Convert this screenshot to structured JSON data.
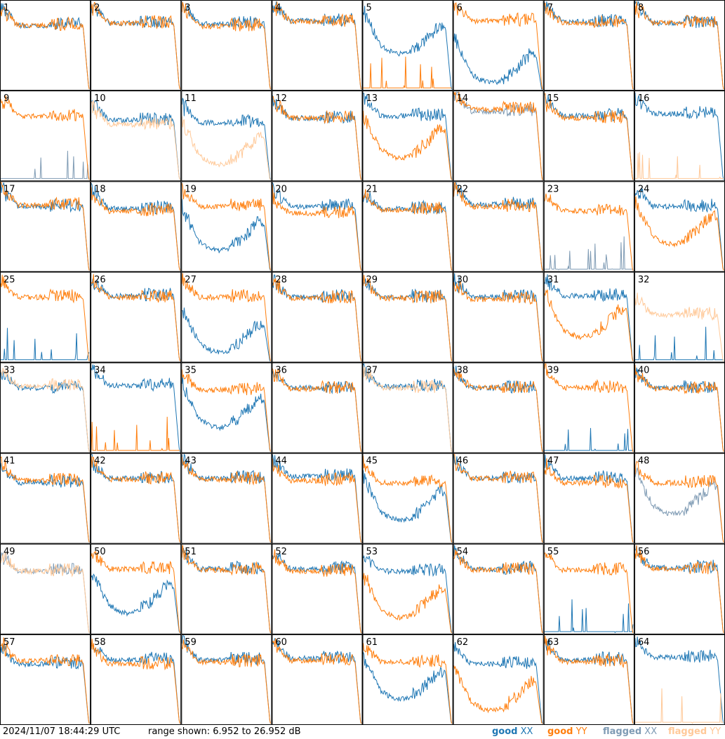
{
  "timestamp": "2024/11/07 18:44:29 UTC",
  "range_text": "range shown: 6.952 to 26.952 dB",
  "legend": {
    "good_word": "good",
    "flagged_word": "flagged",
    "xx": "XX",
    "yy": "YY"
  },
  "colors": {
    "good_xx": "#1f77b4",
    "good_yy": "#ff7f0e",
    "flagged_xx": "#7f9bb4",
    "flagged_yy": "#ffc999",
    "border": "#000000"
  },
  "chart_data": {
    "type": "line",
    "grid": {
      "rows": 8,
      "cols": 8
    },
    "ylim": [
      6.952,
      26.952
    ],
    "yunit": "dB",
    "panels": [
      {
        "id": "1",
        "xx": {
          "status": "good",
          "profile": "band",
          "level": 21.5
        },
        "yy": {
          "status": "good",
          "profile": "band",
          "level": 21.5
        }
      },
      {
        "id": "2",
        "xx": {
          "status": "good",
          "profile": "band",
          "level": 22.0
        },
        "yy": {
          "status": "good",
          "profile": "band",
          "level": 22.0
        }
      },
      {
        "id": "3",
        "xx": {
          "status": "good",
          "profile": "band",
          "level": 21.8
        },
        "yy": {
          "status": "good",
          "profile": "band",
          "level": 21.3
        }
      },
      {
        "id": "4",
        "xx": {
          "status": "good",
          "profile": "band",
          "level": 22.5
        },
        "yy": {
          "status": "good",
          "profile": "band",
          "level": 22.3
        }
      },
      {
        "id": "5",
        "xx": {
          "status": "good",
          "profile": "dip",
          "level": 21.0
        },
        "yy": {
          "status": "good",
          "profile": "spike",
          "level": 9.0
        }
      },
      {
        "id": "6",
        "xx": {
          "status": "good",
          "profile": "dip",
          "level": 14.5
        },
        "yy": {
          "status": "good",
          "profile": "band",
          "level": 22.5
        }
      },
      {
        "id": "7",
        "xx": {
          "status": "good",
          "profile": "band",
          "level": 22.3
        },
        "yy": {
          "status": "good",
          "profile": "band",
          "level": 22.0
        }
      },
      {
        "id": "8",
        "xx": {
          "status": "good",
          "profile": "band",
          "level": 22.0
        },
        "yy": {
          "status": "good",
          "profile": "band",
          "level": 22.0
        }
      },
      {
        "id": "9",
        "xx": {
          "status": "flagged",
          "profile": "spike",
          "level": 9.0
        },
        "yy": {
          "status": "good",
          "profile": "band",
          "level": 21.5
        }
      },
      {
        "id": "10",
        "xx": {
          "status": "good",
          "profile": "band",
          "level": 20.5
        },
        "yy": {
          "status": "flagged",
          "profile": "band",
          "level": 19.5
        }
      },
      {
        "id": "11",
        "xx": {
          "status": "good",
          "profile": "band",
          "level": 20.0
        },
        "yy": {
          "status": "flagged",
          "profile": "dip",
          "level": 16.5
        }
      },
      {
        "id": "12",
        "xx": {
          "status": "good",
          "profile": "band",
          "level": 21.0
        },
        "yy": {
          "status": "good",
          "profile": "band",
          "level": 21.0
        }
      },
      {
        "id": "13",
        "xx": {
          "status": "good",
          "profile": "band",
          "level": 21.5
        },
        "yy": {
          "status": "good",
          "profile": "dip",
          "level": 18.0
        }
      },
      {
        "id": "14",
        "xx": {
          "status": "flagged",
          "profile": "band",
          "level": 22.5
        },
        "yy": {
          "status": "good",
          "profile": "band",
          "level": 23.0
        }
      },
      {
        "id": "15",
        "xx": {
          "status": "good",
          "profile": "band",
          "level": 21.5
        },
        "yy": {
          "status": "good",
          "profile": "band",
          "level": 21.0
        }
      },
      {
        "id": "16",
        "xx": {
          "status": "good",
          "profile": "band",
          "level": 22.0
        },
        "yy": {
          "status": "flagged",
          "profile": "spike",
          "level": 9.0
        }
      },
      {
        "id": "17",
        "xx": {
          "status": "good",
          "profile": "band",
          "level": 21.5
        },
        "yy": {
          "status": "good",
          "profile": "band",
          "level": 21.8
        }
      },
      {
        "id": "18",
        "xx": {
          "status": "good",
          "profile": "band",
          "level": 21.0
        },
        "yy": {
          "status": "good",
          "profile": "band",
          "level": 20.5
        }
      },
      {
        "id": "19",
        "xx": {
          "status": "good",
          "profile": "dip",
          "level": 17.5
        },
        "yy": {
          "status": "good",
          "profile": "band",
          "level": 21.5
        }
      },
      {
        "id": "20",
        "xx": {
          "status": "good",
          "profile": "band",
          "level": 21.5
        },
        "yy": {
          "status": "good",
          "profile": "band",
          "level": 20.0
        }
      },
      {
        "id": "21",
        "xx": {
          "status": "good",
          "profile": "band",
          "level": 21.0
        },
        "yy": {
          "status": "good",
          "profile": "band",
          "level": 20.8
        }
      },
      {
        "id": "22",
        "xx": {
          "status": "good",
          "profile": "band",
          "level": 22.0
        },
        "yy": {
          "status": "good",
          "profile": "band",
          "level": 21.5
        }
      },
      {
        "id": "23",
        "xx": {
          "status": "flagged",
          "profile": "spike",
          "level": 10.0
        },
        "yy": {
          "status": "good",
          "profile": "band",
          "level": 20.5
        }
      },
      {
        "id": "24",
        "xx": {
          "status": "good",
          "profile": "band",
          "level": 21.5
        },
        "yy": {
          "status": "good",
          "profile": "dip",
          "level": 19.0
        }
      },
      {
        "id": "25",
        "xx": {
          "status": "good",
          "profile": "spike",
          "level": 9.0
        },
        "yy": {
          "status": "good",
          "profile": "band",
          "level": 21.5
        }
      },
      {
        "id": "26",
        "xx": {
          "status": "good",
          "profile": "band",
          "level": 21.8
        },
        "yy": {
          "status": "good",
          "profile": "band",
          "level": 21.5
        }
      },
      {
        "id": "27",
        "xx": {
          "status": "good",
          "profile": "dip",
          "level": 15.0
        },
        "yy": {
          "status": "good",
          "profile": "band",
          "level": 21.5
        }
      },
      {
        "id": "28",
        "xx": {
          "status": "good",
          "profile": "band",
          "level": 21.5
        },
        "yy": {
          "status": "good",
          "profile": "band",
          "level": 21.3
        }
      },
      {
        "id": "29",
        "xx": {
          "status": "good",
          "profile": "band",
          "level": 21.5
        },
        "yy": {
          "status": "good",
          "profile": "band",
          "level": 21.3
        }
      },
      {
        "id": "30",
        "xx": {
          "status": "good",
          "profile": "band",
          "level": 21.5
        },
        "yy": {
          "status": "good",
          "profile": "band",
          "level": 21.0
        }
      },
      {
        "id": "31",
        "xx": {
          "status": "good",
          "profile": "band",
          "level": 21.8
        },
        "yy": {
          "status": "good",
          "profile": "dip",
          "level": 18.5
        }
      },
      {
        "id": "32",
        "xx": {
          "status": "good",
          "profile": "spike",
          "level": 9.0
        },
        "yy": {
          "status": "flagged",
          "profile": "band",
          "level": 17.5
        }
      },
      {
        "id": "33",
        "xx": {
          "status": "good",
          "profile": "band",
          "level": 21.5
        },
        "yy": {
          "status": "flagged",
          "profile": "band",
          "level": 21.8
        }
      },
      {
        "id": "34",
        "xx": {
          "status": "good",
          "profile": "band",
          "level": 22.0
        },
        "yy": {
          "status": "good",
          "profile": "spike",
          "level": 9.0
        }
      },
      {
        "id": "35",
        "xx": {
          "status": "good",
          "profile": "dip",
          "level": 18.5
        },
        "yy": {
          "status": "good",
          "profile": "band",
          "level": 21.0
        }
      },
      {
        "id": "36",
        "xx": {
          "status": "good",
          "profile": "band",
          "level": 21.5
        },
        "yy": {
          "status": "good",
          "profile": "band",
          "level": 21.3
        }
      },
      {
        "id": "37",
        "xx": {
          "status": "good",
          "profile": "band",
          "level": 21.8
        },
        "yy": {
          "status": "flagged",
          "profile": "band",
          "level": 21.5
        }
      },
      {
        "id": "38",
        "xx": {
          "status": "good",
          "profile": "band",
          "level": 21.5
        },
        "yy": {
          "status": "good",
          "profile": "band",
          "level": 21.5
        }
      },
      {
        "id": "39",
        "xx": {
          "status": "good",
          "profile": "spike",
          "level": 9.0
        },
        "yy": {
          "status": "good",
          "profile": "band",
          "level": 21.5
        }
      },
      {
        "id": "40",
        "xx": {
          "status": "good",
          "profile": "band",
          "level": 21.5
        },
        "yy": {
          "status": "good",
          "profile": "band",
          "level": 21.3
        }
      },
      {
        "id": "41",
        "xx": {
          "status": "good",
          "profile": "band",
          "level": 20.5
        },
        "yy": {
          "status": "good",
          "profile": "band",
          "level": 21.0
        }
      },
      {
        "id": "42",
        "xx": {
          "status": "good",
          "profile": "band",
          "level": 21.5
        },
        "yy": {
          "status": "good",
          "profile": "band",
          "level": 21.3
        }
      },
      {
        "id": "43",
        "xx": {
          "status": "good",
          "profile": "band",
          "level": 21.5
        },
        "yy": {
          "status": "good",
          "profile": "band",
          "level": 21.3
        }
      },
      {
        "id": "44",
        "xx": {
          "status": "good",
          "profile": "band",
          "level": 22.0
        },
        "yy": {
          "status": "good",
          "profile": "band",
          "level": 21.0
        }
      },
      {
        "id": "45",
        "xx": {
          "status": "good",
          "profile": "dip",
          "level": 18.0
        },
        "yy": {
          "status": "good",
          "profile": "band",
          "level": 20.5
        }
      },
      {
        "id": "46",
        "xx": {
          "status": "good",
          "profile": "band",
          "level": 21.5
        },
        "yy": {
          "status": "good",
          "profile": "band",
          "level": 21.5
        }
      },
      {
        "id": "47",
        "xx": {
          "status": "good",
          "profile": "band",
          "level": 21.5
        },
        "yy": {
          "status": "good",
          "profile": "band",
          "level": 20.5
        }
      },
      {
        "id": "48",
        "xx": {
          "status": "flagged",
          "profile": "dip",
          "level": 19.5
        },
        "yy": {
          "status": "good",
          "profile": "band",
          "level": 20.5
        }
      },
      {
        "id": "49",
        "xx": {
          "status": "flagged",
          "profile": "band",
          "level": 21.0
        },
        "yy": {
          "status": "flagged",
          "profile": "band",
          "level": 21.0
        }
      },
      {
        "id": "50",
        "xx": {
          "status": "good",
          "profile": "dip",
          "level": 17.5
        },
        "yy": {
          "status": "good",
          "profile": "band",
          "level": 21.5
        }
      },
      {
        "id": "51",
        "xx": {
          "status": "good",
          "profile": "band",
          "level": 21.5
        },
        "yy": {
          "status": "good",
          "profile": "band",
          "level": 21.3
        }
      },
      {
        "id": "52",
        "xx": {
          "status": "good",
          "profile": "band",
          "level": 21.5
        },
        "yy": {
          "status": "good",
          "profile": "band",
          "level": 21.0
        }
      },
      {
        "id": "53",
        "xx": {
          "status": "good",
          "profile": "band",
          "level": 21.0
        },
        "yy": {
          "status": "good",
          "profile": "dip",
          "level": 16.5
        }
      },
      {
        "id": "54",
        "xx": {
          "status": "good",
          "profile": "band",
          "level": 21.5
        },
        "yy": {
          "status": "good",
          "profile": "band",
          "level": 21.3
        }
      },
      {
        "id": "55",
        "xx": {
          "status": "good",
          "profile": "spike",
          "level": 10.0
        },
        "yy": {
          "status": "good",
          "profile": "band",
          "level": 21.3
        }
      },
      {
        "id": "56",
        "xx": {
          "status": "good",
          "profile": "band",
          "level": 21.8
        },
        "yy": {
          "status": "good",
          "profile": "band",
          "level": 21.5
        }
      },
      {
        "id": "57",
        "xx": {
          "status": "good",
          "profile": "band",
          "level": 20.5
        },
        "yy": {
          "status": "good",
          "profile": "band",
          "level": 21.3
        }
      },
      {
        "id": "58",
        "xx": {
          "status": "good",
          "profile": "band",
          "level": 21.5
        },
        "yy": {
          "status": "good",
          "profile": "band",
          "level": 20.5
        }
      },
      {
        "id": "59",
        "xx": {
          "status": "good",
          "profile": "band",
          "level": 21.5
        },
        "yy": {
          "status": "good",
          "profile": "band",
          "level": 21.0
        }
      },
      {
        "id": "60",
        "xx": {
          "status": "good",
          "profile": "band",
          "level": 21.8
        },
        "yy": {
          "status": "good",
          "profile": "band",
          "level": 21.3
        }
      },
      {
        "id": "61",
        "xx": {
          "status": "good",
          "profile": "dip",
          "level": 18.5
        },
        "yy": {
          "status": "good",
          "profile": "band",
          "level": 21.0
        }
      },
      {
        "id": "62",
        "xx": {
          "status": "good",
          "profile": "band",
          "level": 20.5
        },
        "yy": {
          "status": "good",
          "profile": "dip",
          "level": 16.0
        }
      },
      {
        "id": "63",
        "xx": {
          "status": "good",
          "profile": "band",
          "level": 21.5
        },
        "yy": {
          "status": "good",
          "profile": "band",
          "level": 21.0
        }
      },
      {
        "id": "64",
        "xx": {
          "status": "good",
          "profile": "band",
          "level": 22.0
        },
        "yy": {
          "status": "flagged",
          "profile": "spike",
          "level": 9.0
        }
      }
    ]
  }
}
